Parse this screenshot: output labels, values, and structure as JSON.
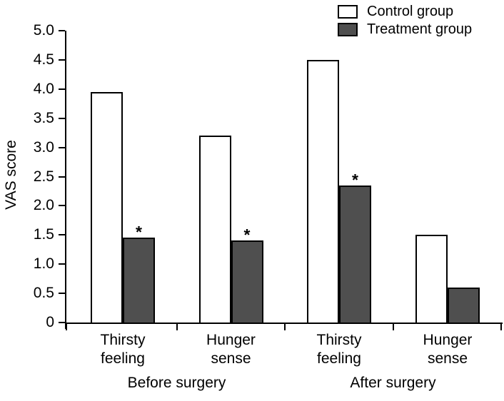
{
  "chart_data": {
    "type": "bar",
    "title": "",
    "ylabel": "VAS score",
    "xlabel": "",
    "ylim": [
      0,
      5
    ],
    "ytick_step": 0.5,
    "ytick_labels": [
      "0",
      "0.5",
      "1.0",
      "1.5",
      "2.0",
      "2.5",
      "3.0",
      "3.5",
      "4.0",
      "4.5",
      "5.0"
    ],
    "grid": false,
    "legend_position": "top-right",
    "categories": [
      "Thirsty feeling",
      "Hunger sense",
      "Thirsty feeling",
      "Hunger sense"
    ],
    "category_group_index": [
      0,
      0,
      1,
      1
    ],
    "group_labels": [
      "Before surgery",
      "After surgery"
    ],
    "series": [
      {
        "name": "Control group",
        "color": "#ffffff",
        "border_color": "#000000",
        "values": [
          3.95,
          3.2,
          4.5,
          1.5
        ],
        "significant": [
          false,
          false,
          false,
          false
        ]
      },
      {
        "name": "Treatment group",
        "color": "#4f4f4f",
        "border_color": "#000000",
        "values": [
          1.45,
          1.4,
          2.35,
          0.6
        ],
        "significant": [
          true,
          true,
          true,
          false
        ]
      }
    ],
    "significance_marker": "*",
    "axis_color": "#000000"
  }
}
